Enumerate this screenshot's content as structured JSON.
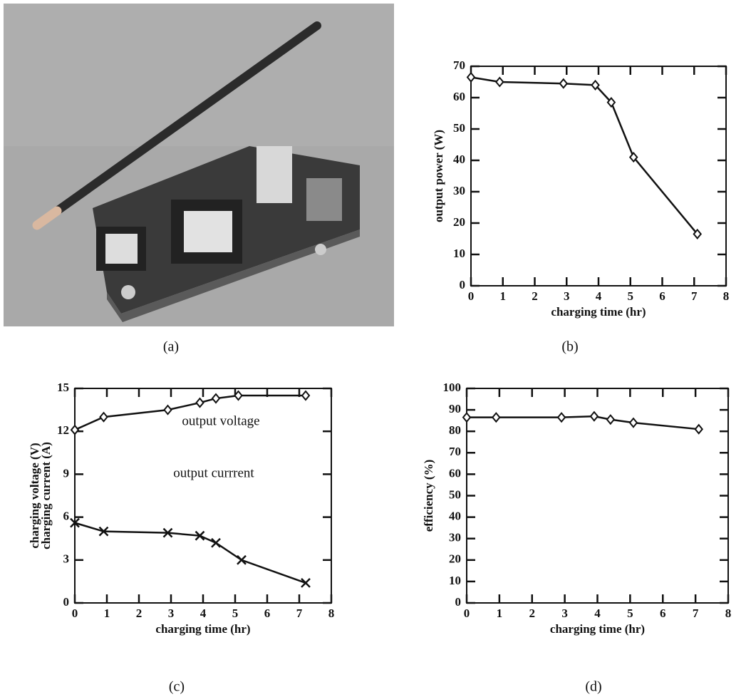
{
  "photo": {
    "caption": "(a)"
  },
  "chart_data": [
    {
      "type": "line",
      "caption": "(b)",
      "xlabel": "charging time (hr)",
      "ylabel": "output power (W)",
      "x": [
        0,
        0.9,
        2.9,
        3.9,
        4.4,
        5.1,
        7.1
      ],
      "values": [
        66.5,
        65,
        64.5,
        64,
        58.5,
        41,
        16.5
      ],
      "marker": "diamond",
      "color": "#111111",
      "xlim": [
        0,
        8
      ],
      "xticks": [
        0,
        1,
        2,
        3,
        4,
        5,
        6,
        7,
        8
      ],
      "ylim": [
        0,
        70
      ],
      "yticks": [
        0,
        10,
        20,
        30,
        40,
        50,
        60,
        70
      ]
    },
    {
      "type": "line",
      "caption": "(c)",
      "xlabel": "charging time (hr)",
      "ylabel": [
        "charging voltage (V)",
        "charging current (A)"
      ],
      "series": [
        {
          "name": "output voltage",
          "marker": "diamond",
          "color": "#111111",
          "x": [
            0,
            0.9,
            2.9,
            3.9,
            4.4,
            5.1,
            7.2
          ],
          "values": [
            12.1,
            13,
            13.5,
            14,
            14.3,
            14.5,
            14.5
          ]
        },
        {
          "name": "output currrent",
          "marker": "x",
          "color": "#111111",
          "x": [
            0,
            0.9,
            2.9,
            3.9,
            4.4,
            5.2,
            7.2
          ],
          "values": [
            5.6,
            5,
            4.9,
            4.7,
            4.2,
            3,
            1.4
          ]
        }
      ],
      "xlim": [
        0,
        8
      ],
      "xticks": [
        0,
        1,
        2,
        3,
        4,
        5,
        6,
        7,
        8
      ],
      "ylim": [
        0,
        15
      ],
      "yticks": [
        0,
        3,
        6,
        9,
        12,
        15
      ]
    },
    {
      "type": "line",
      "caption": "(d)",
      "xlabel": "charging time (hr)",
      "ylabel": "efficiency (%)",
      "x": [
        0,
        0.9,
        2.9,
        3.9,
        4.4,
        5.1,
        7.1
      ],
      "values": [
        86.5,
        86.5,
        86.5,
        87,
        85.5,
        84,
        81
      ],
      "marker": "diamond",
      "color": "#111111",
      "xlim": [
        0,
        8
      ],
      "xticks": [
        0,
        1,
        2,
        3,
        4,
        5,
        6,
        7,
        8
      ],
      "ylim": [
        0,
        100
      ],
      "yticks": [
        0,
        10,
        20,
        30,
        40,
        50,
        60,
        70,
        80,
        90,
        100
      ]
    }
  ]
}
